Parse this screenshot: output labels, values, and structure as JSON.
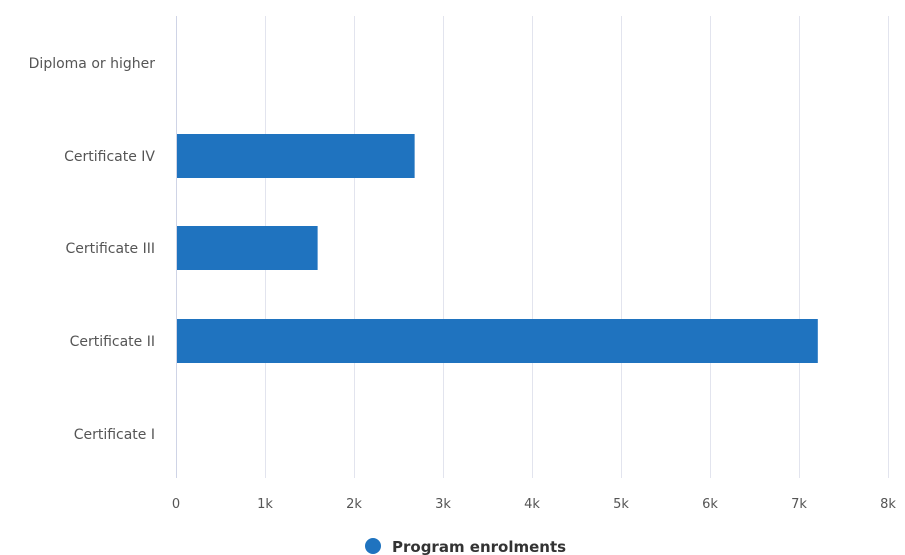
{
  "chart_data": {
    "type": "bar",
    "orientation": "horizontal",
    "categories": [
      "Diploma or higher",
      "Certificate IV",
      "Certificate III",
      "Certificate II",
      "Certificate I"
    ],
    "series": [
      {
        "name": "Program enrolments",
        "values": [
          0,
          2670,
          1580,
          7200,
          0
        ],
        "color": "#1f73bf"
      }
    ],
    "x_ticks": [
      "0",
      "1k",
      "2k",
      "3k",
      "4k",
      "5k",
      "6k",
      "7k",
      "8k"
    ],
    "xlim": [
      0,
      8000
    ],
    "grid": "vertical",
    "legend_position": "bottom-center",
    "gridline_color": "#e2e4ee",
    "axis_line_color": "#cfd4e6"
  }
}
